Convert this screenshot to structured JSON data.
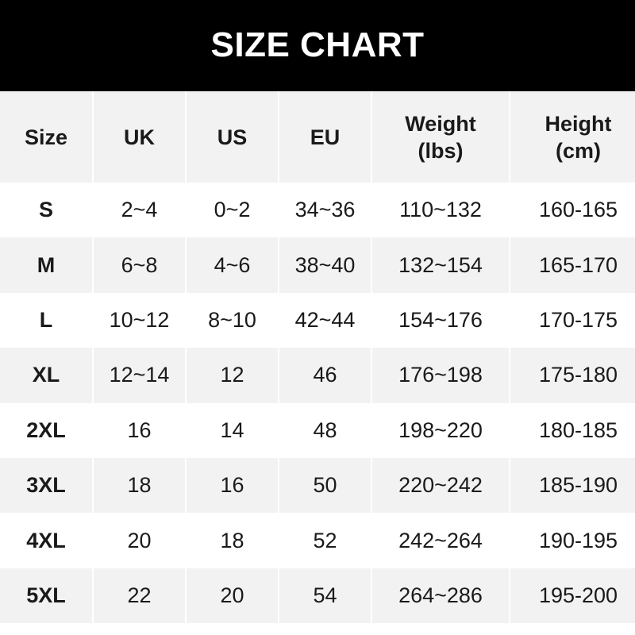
{
  "title": "SIZE CHART",
  "headers": [
    "Size",
    "UK",
    "US",
    "EU",
    "Weight\n(lbs)",
    "Height\n(cm)"
  ],
  "header_lines": [
    [
      "Size"
    ],
    [
      "UK"
    ],
    [
      "US"
    ],
    [
      "EU"
    ],
    [
      "Weight",
      "(lbs)"
    ],
    [
      "Height",
      "(cm)"
    ]
  ],
  "rows": [
    [
      "S",
      "2~4",
      "0~2",
      "34~36",
      "110~132",
      "160-165"
    ],
    [
      "M",
      "6~8",
      "4~6",
      "38~40",
      "132~154",
      "165-170"
    ],
    [
      "L",
      "10~12",
      "8~10",
      "42~44",
      "154~176",
      "170-175"
    ],
    [
      "XL",
      "12~14",
      "12",
      "46",
      "176~198",
      "175-180"
    ],
    [
      "2XL",
      "16",
      "14",
      "48",
      "198~220",
      "180-185"
    ],
    [
      "3XL",
      "18",
      "16",
      "50",
      "220~242",
      "185-190"
    ],
    [
      "4XL",
      "20",
      "18",
      "52",
      "242~264",
      "190-195"
    ],
    [
      "5XL",
      "22",
      "20",
      "54",
      "264~286",
      "195-200"
    ]
  ],
  "colors": {
    "header_bg": "#000000",
    "shade": "#f2f2f2",
    "white": "#ffffff"
  }
}
